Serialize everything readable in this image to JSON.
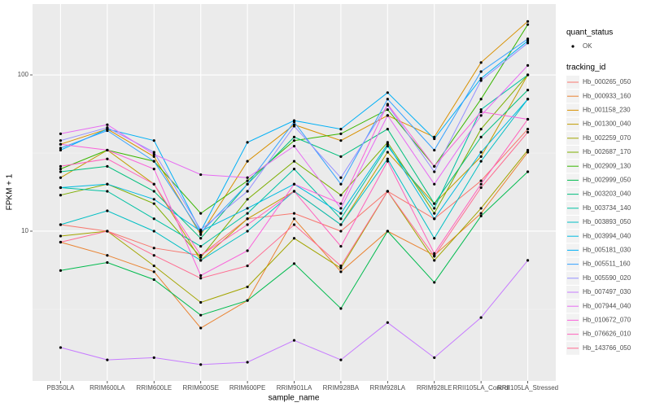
{
  "chart_data": {
    "type": "line",
    "x_label": "sample_name",
    "y_label": "FPKM + 1",
    "categories": [
      "PB350LA",
      "RRIM600LA",
      "RRIM600LE",
      "RRIM600SE",
      "RRIM600PE",
      "RRIM901LA",
      "RRIM928BA",
      "RRIM928LA",
      "RRIM928LE",
      "RRII105LA_Control",
      "RRII105LA_Stressed"
    ],
    "ylim": [
      1.1,
      284
    ],
    "yticks": [
      10,
      100
    ],
    "log_y": true,
    "grid": true,
    "legend_position": "right",
    "status_legend": {
      "title": "quant_status",
      "labels": [
        "OK"
      ]
    },
    "legend_title": "tracking_id",
    "series": [
      {
        "name": "Hb_000265_050",
        "color": "#F8766D",
        "values": [
          11,
          10,
          7.8,
          7,
          12,
          13,
          10,
          18,
          12,
          21,
          45
        ]
      },
      {
        "name": "Hb_000933_160",
        "color": "#EA8331",
        "values": [
          8.5,
          7,
          5.5,
          2.4,
          3.6,
          12,
          5.5,
          10,
          7,
          13,
          32
        ]
      },
      {
        "name": "Hb_001158_230",
        "color": "#D89000",
        "values": [
          36,
          45,
          30,
          9.5,
          28,
          48,
          38,
          55,
          40,
          120,
          220
        ]
      },
      {
        "name": "Hb_001300_040",
        "color": "#C09B00",
        "values": [
          22,
          33,
          20,
          6.5,
          12,
          18,
          11,
          32,
          15,
          30,
          100
        ]
      },
      {
        "name": "Hb_002259_070",
        "color": "#A3A500",
        "values": [
          9.3,
          10,
          6,
          3.5,
          4.4,
          9,
          5.8,
          18,
          6.5,
          14,
          33
        ]
      },
      {
        "name": "Hb_002687_170",
        "color": "#7CAE00",
        "values": [
          17,
          20,
          15,
          6.8,
          16,
          28,
          17,
          37,
          13,
          45,
          100
        ]
      },
      {
        "name": "Hb_002909_130",
        "color": "#39B600",
        "values": [
          25,
          33,
          28,
          13,
          21,
          38,
          42,
          60,
          26,
          70,
          210
        ]
      },
      {
        "name": "Hb_002999_050",
        "color": "#00BB4E",
        "values": [
          5.6,
          6.3,
          4.9,
          2.9,
          3.6,
          6.2,
          3.2,
          10,
          4.7,
          12.5,
          24
        ]
      },
      {
        "name": "Hb_003203_040",
        "color": "#00BF7D",
        "values": [
          24,
          26,
          18,
          9,
          20,
          40,
          30,
          45,
          15,
          40,
          80
        ]
      },
      {
        "name": "Hb_003734_140",
        "color": "#00C1A3",
        "values": [
          19,
          18,
          12,
          8,
          13,
          25,
          12,
          35,
          14,
          60,
          100
        ]
      },
      {
        "name": "Hb_003893_050",
        "color": "#00BFC4",
        "values": [
          11,
          13.5,
          10,
          6.5,
          10,
          18,
          11,
          29,
          9,
          28,
          70
        ]
      },
      {
        "name": "Hb_003994_040",
        "color": "#00BAE0",
        "values": [
          19,
          20,
          16,
          10,
          14,
          20,
          13,
          36,
          12,
          32,
          70
        ]
      },
      {
        "name": "Hb_005181_030",
        "color": "#00B0F6",
        "values": [
          33,
          45,
          38,
          10,
          37,
          51,
          45,
          77,
          39,
          95,
          165
        ]
      },
      {
        "name": "Hb_005511_160",
        "color": "#35A2FF",
        "values": [
          34,
          44,
          28,
          9.8,
          20,
          50,
          20,
          70,
          33,
          105,
          170
        ]
      },
      {
        "name": "Hb_005590_020",
        "color": "#9590FF",
        "values": [
          38,
          46,
          32,
          10.2,
          18,
          47,
          22,
          64,
          24,
          92,
          160
        ]
      },
      {
        "name": "Hb_007497_030",
        "color": "#C77CFF",
        "values": [
          1.8,
          1.5,
          1.55,
          1.4,
          1.45,
          2.0,
          1.5,
          2.6,
          1.55,
          2.8,
          6.5
        ]
      },
      {
        "name": "Hb_007944_040",
        "color": "#E76BF3",
        "values": [
          42,
          48,
          31,
          23,
          22,
          35,
          14,
          55,
          20,
          55,
          115
        ]
      },
      {
        "name": "Hb_010672_070",
        "color": "#FA62DB",
        "values": [
          36,
          33,
          25,
          5.2,
          7.5,
          20,
          15,
          65,
          26,
          58,
          52
        ]
      },
      {
        "name": "Hb_076626_010",
        "color": "#FF62BC",
        "values": [
          26,
          29,
          20,
          7,
          11,
          18,
          8,
          28,
          7.2,
          20,
          52
        ]
      },
      {
        "name": "Hb_143766_050",
        "color": "#FF6C91",
        "values": [
          8.5,
          10,
          7,
          5,
          6,
          11,
          6,
          18,
          6.9,
          19,
          43
        ]
      }
    ]
  }
}
